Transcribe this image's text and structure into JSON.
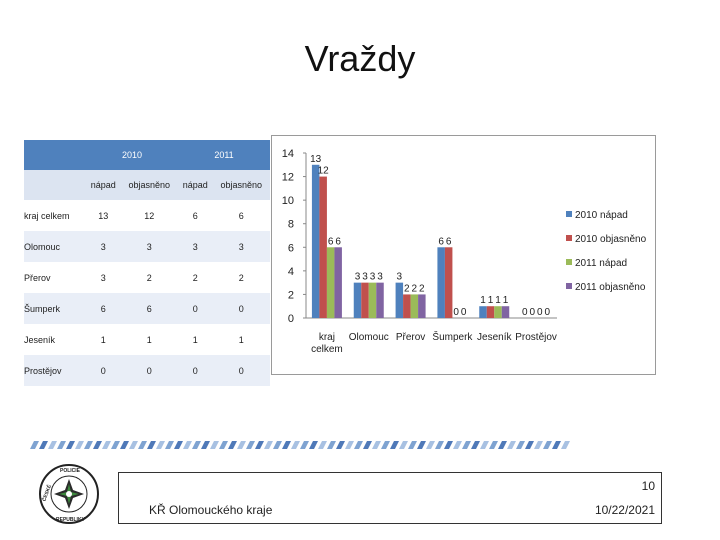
{
  "slide": {
    "title": "Vraždy",
    "slide_number": "10",
    "organization": "KŘ Olomouckého kraje",
    "date": "10/22/2021"
  },
  "table": {
    "years": [
      "2010",
      "2011"
    ],
    "subheaders": [
      "nápad",
      "objasněno",
      "nápad",
      "objasněno"
    ],
    "rows": [
      {
        "label": "kraj celkem",
        "values": [
          "13",
          "12",
          "6",
          "6"
        ]
      },
      {
        "label": "Olomouc",
        "values": [
          "3",
          "3",
          "3",
          "3"
        ]
      },
      {
        "label": "Přerov",
        "values": [
          "3",
          "2",
          "2",
          "2"
        ]
      },
      {
        "label": "Šumperk",
        "values": [
          "6",
          "6",
          "0",
          "0"
        ]
      },
      {
        "label": "Jeseník",
        "values": [
          "1",
          "1",
          "1",
          "1"
        ]
      },
      {
        "label": "Prostějov",
        "values": [
          "0",
          "0",
          "0",
          "0"
        ]
      }
    ]
  },
  "chart_data": {
    "type": "bar",
    "categories": [
      "kraj celkem",
      "Olomouc",
      "Přerov",
      "Šumperk",
      "Jeseník",
      "Prostějov"
    ],
    "series": [
      {
        "name": "2010 nápad",
        "color": "#4f81bd",
        "values": [
          13,
          3,
          3,
          6,
          1,
          0
        ]
      },
      {
        "name": "2010 objasněno",
        "color": "#c0504d",
        "values": [
          12,
          3,
          2,
          6,
          1,
          0
        ]
      },
      {
        "name": "2011 nápad",
        "color": "#9bbb59",
        "values": [
          6,
          3,
          2,
          0,
          1,
          0
        ]
      },
      {
        "name": "2011 objasněno",
        "color": "#8064a2",
        "values": [
          6,
          3,
          2,
          0,
          1,
          0
        ]
      }
    ],
    "ylim": [
      0,
      14
    ],
    "yticks": [
      0,
      2,
      4,
      6,
      8,
      10,
      12,
      14
    ],
    "grid": false,
    "legend_position": "right"
  }
}
